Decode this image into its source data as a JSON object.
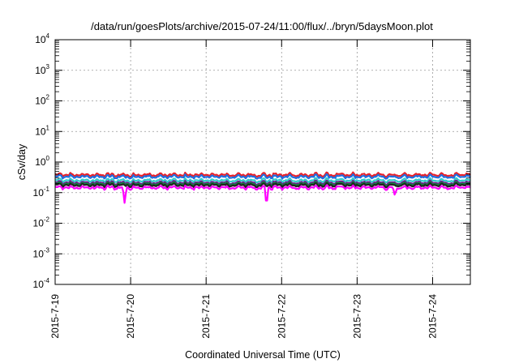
{
  "chart_data": {
    "type": "line",
    "title": "/data/run/goesPlots/archive/2015-07-24/11:00/flux/../bryn/5daysMoon.plot",
    "xlabel": "Coordinated Universal Time (UTC)",
    "ylabel": "cSv/day",
    "y_scale": "log",
    "ylim": [
      0.0001,
      10000
    ],
    "xlim_days": [
      0,
      5.5
    ],
    "x_tick_labels": [
      "2015-7-19",
      "2015-7-20",
      "2015-7-21",
      "2015-7-22",
      "2015-7-23",
      "2015-7-24"
    ],
    "y_ticks": [
      {
        "base": "10",
        "exp": "-4"
      },
      {
        "base": "10",
        "exp": "-3"
      },
      {
        "base": "10",
        "exp": "-2"
      },
      {
        "base": "10",
        "exp": "-1"
      },
      {
        "base": "10",
        "exp": "0"
      },
      {
        "base": "10",
        "exp": "1"
      },
      {
        "base": "10",
        "exp": "2"
      },
      {
        "base": "10",
        "exp": "3"
      },
      {
        "base": "10",
        "exp": "4"
      }
    ],
    "grid": true,
    "series": [
      {
        "color": "#e8212a",
        "level": 0.38
      },
      {
        "color": "#1f6fe0",
        "level": 0.33
      },
      {
        "color": "#33cccc",
        "level": 0.25
      },
      {
        "color": "#6b1a8c",
        "level": 0.21
      },
      {
        "color": "#0b8a3a",
        "level": 0.19
      },
      {
        "color": "#222222",
        "level": 0.175
      },
      {
        "color": "#ff00ff",
        "level": 0.145,
        "dips": [
          {
            "day": 0.92,
            "value": 0.045
          },
          {
            "day": 2.8,
            "value": 0.035
          },
          {
            "day": 4.5,
            "value": 0.08
          }
        ]
      }
    ]
  }
}
